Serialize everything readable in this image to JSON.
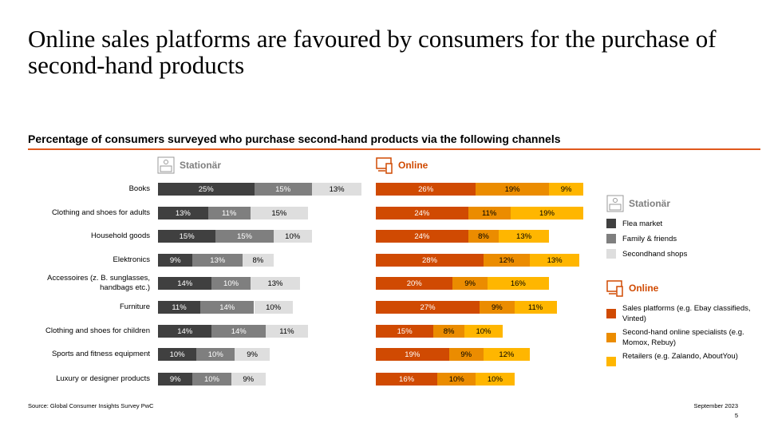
{
  "title": "Online sales platforms are favoured by consumers for the purchase of second-hand products",
  "chart_data": {
    "type": "bar",
    "stacked": true,
    "orientation": "horizontal",
    "title": "Percentage of consumers surveyed who purchase second-hand products via the following channels",
    "categories": [
      "Books",
      "Clothing and shoes for adults",
      "Household goods",
      "Elektronics",
      "Accessoires (z. B. sunglasses, handbags etc.)",
      "Furniture",
      "Clothing and shoes for children",
      "Sports and fitness equipment",
      "Luxury or designer products"
    ],
    "groups": [
      {
        "name": "Stationär",
        "color": "#7f7f7f",
        "series": [
          {
            "name": "Flea market",
            "color": "#404040",
            "values": [
              25,
              13,
              15,
              9,
              14,
              11,
              14,
              10,
              9
            ]
          },
          {
            "name": "Family & friends",
            "color": "#7f7f7f",
            "values": [
              15,
              11,
              15,
              13,
              10,
              14,
              14,
              10,
              10
            ]
          },
          {
            "name": "Secondhand shops",
            "color": "#dedede",
            "values": [
              13,
              15,
              10,
              8,
              13,
              10,
              11,
              9,
              9
            ]
          }
        ]
      },
      {
        "name": "Online",
        "color": "#d04a02",
        "series": [
          {
            "name": "Sales platforms (e.g. Ebay classifieds, Vinted)",
            "color": "#d04a02",
            "values": [
              26,
              24,
              24,
              28,
              20,
              27,
              15,
              19,
              16
            ]
          },
          {
            "name": "Second-hand online specialists (e.g. Momox, Rebuy)",
            "color": "#eb8c00",
            "values": [
              19,
              11,
              8,
              12,
              9,
              9,
              8,
              9,
              10
            ]
          },
          {
            "name": "Retailers (e.g. Zalando, AboutYou)",
            "color": "#ffb600",
            "values": [
              9,
              19,
              13,
              13,
              16,
              11,
              10,
              12,
              10
            ]
          }
        ]
      }
    ],
    "unit": "%",
    "legend": "right"
  },
  "footer": {
    "source": "Source: Global Consumer Insights Survey PwC",
    "date": "September 2023",
    "page": "5"
  }
}
